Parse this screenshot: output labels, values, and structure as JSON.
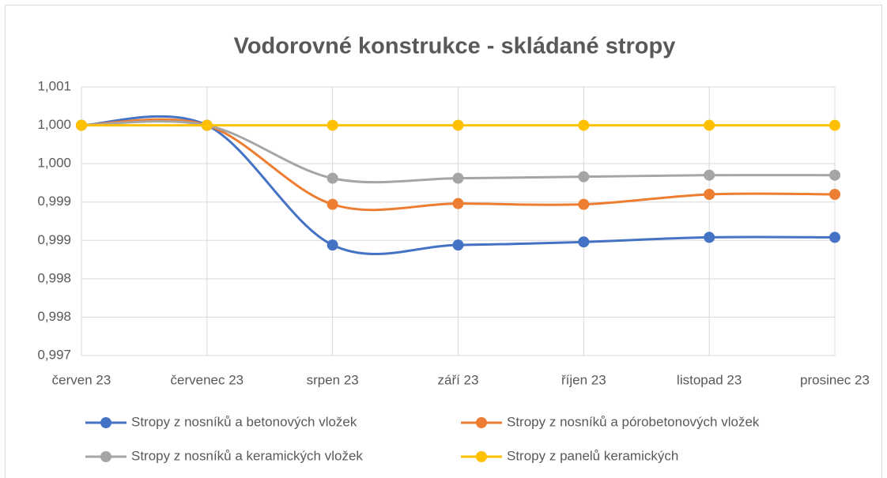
{
  "chart_data": {
    "type": "line",
    "title": "Vodorovné konstrukce - skládané stropy",
    "categories": [
      "červen 23",
      "červenec 23",
      "srpen 23",
      "září 23",
      "říjen 23",
      "listopad 23",
      "prosinec 23"
    ],
    "series": [
      {
        "name": "Stropy z nosníků a betonových vložek",
        "color": "#4472c4",
        "values": [
          1.0,
          1.0,
          0.99844,
          0.99844,
          0.99848,
          0.99854,
          0.99854
        ]
      },
      {
        "name": "Stropy z nosníků a pórobetonových vložek",
        "color": "#ed7d31",
        "values": [
          1.0,
          1.0,
          0.99897,
          0.99898,
          0.99897,
          0.9991,
          0.9991
        ]
      },
      {
        "name": "Stropy z nosníků a keramických vložek",
        "color": "#a5a5a5",
        "values": [
          1.0,
          1.0,
          0.99931,
          0.99931,
          0.99933,
          0.99935,
          0.99935
        ]
      },
      {
        "name": "Stropy z panelů keramických",
        "color": "#ffc000",
        "values": [
          1.0,
          1.0,
          1.0,
          1.0,
          1.0,
          1.0,
          1.0
        ]
      }
    ],
    "ylim": [
      0.997,
      1.0005
    ],
    "yticks": [
      {
        "value": 0.997,
        "label": "0,997"
      },
      {
        "value": 0.9975,
        "label": "0,998"
      },
      {
        "value": 0.998,
        "label": "0,998"
      },
      {
        "value": 0.9985,
        "label": "0,999"
      },
      {
        "value": 0.999,
        "label": "0,999"
      },
      {
        "value": 0.9995,
        "label": "1,000"
      },
      {
        "value": 1.0,
        "label": "1,000"
      },
      {
        "value": 1.0005,
        "label": "1,001"
      }
    ],
    "grid": true,
    "legend": "bottom"
  }
}
